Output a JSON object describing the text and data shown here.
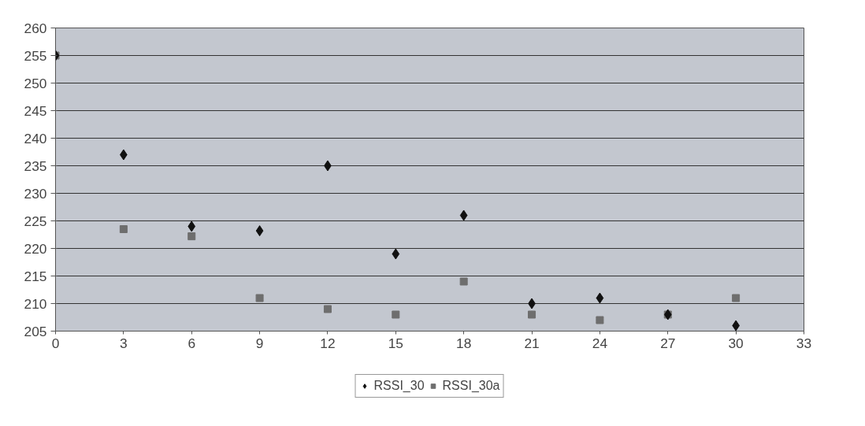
{
  "chart_data": {
    "type": "scatter",
    "x": [
      0,
      3,
      6,
      9,
      12,
      15,
      18,
      21,
      24,
      27,
      30
    ],
    "series": [
      {
        "name": "RSSI_30",
        "color": "#111111",
        "marker": "diamond",
        "values": [
          255,
          237,
          224,
          223.2,
          235,
          219,
          226,
          210,
          211,
          208,
          206
        ]
      },
      {
        "name": "RSSI_30a",
        "color": "#6e6e6e",
        "marker": "square",
        "values": [
          255,
          223.5,
          222.2,
          211,
          209,
          208,
          214,
          208,
          207,
          208,
          211
        ]
      }
    ],
    "xlim": [
      0,
      33
    ],
    "xticks": [
      0,
      3,
      6,
      9,
      12,
      15,
      18,
      21,
      24,
      27,
      30,
      33
    ],
    "ylim": [
      205,
      260
    ],
    "yticks": [
      205,
      210,
      215,
      220,
      225,
      230,
      235,
      240,
      245,
      250,
      255,
      260
    ],
    "grid": "y",
    "legend": "bottom"
  }
}
